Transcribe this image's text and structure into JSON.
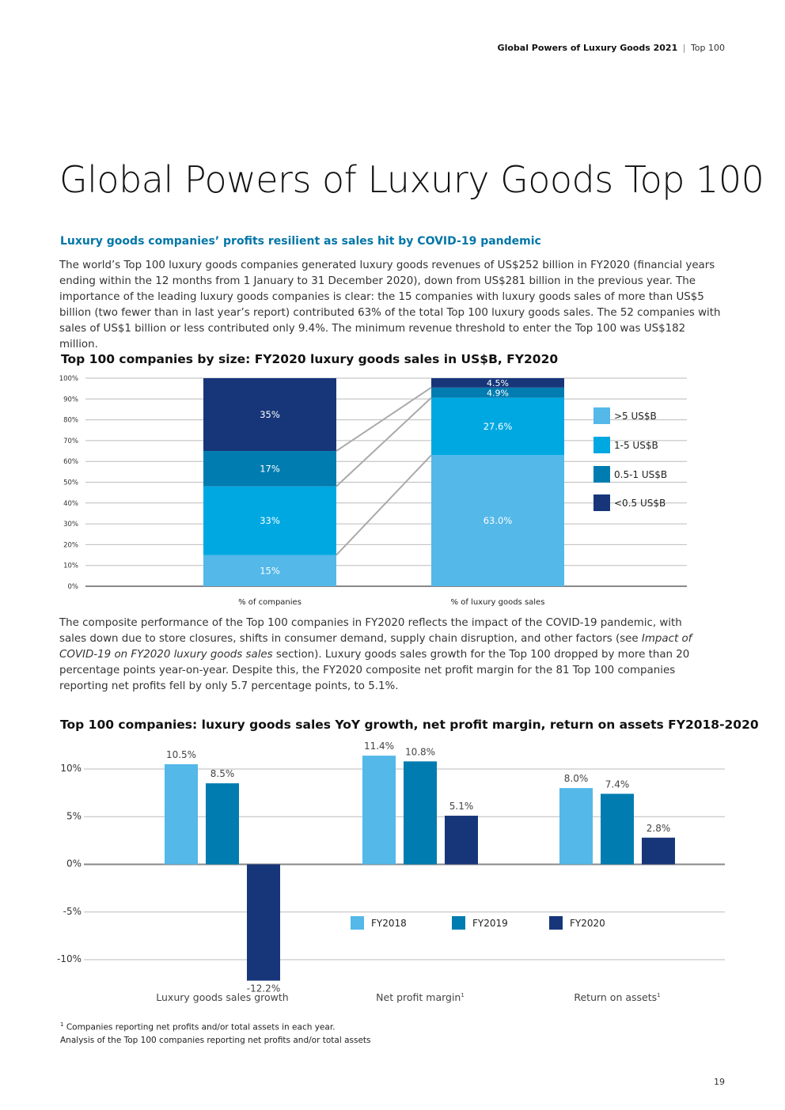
{
  "header": {
    "report_name": "Global Powers of Luxury Goods 2021",
    "separator": "|",
    "section": "Top 100"
  },
  "page_title": "Global Powers of Luxury Goods Top 100",
  "section_heading": "Luxury goods companies’ profits resilient as sales hit by COVID-19 pandemic",
  "paragraph1": "The world’s Top 100 luxury goods companies generated luxury goods revenues of US$252 billion in FY2020 (financial years ending within the 12 months from 1 January to 31 December 2020), down from US$281 billion in the previous year. The importance of the leading luxury goods companies is clear: the 15 companies with luxury goods sales of more than US$5 billion (two fewer than in last year’s report) contributed 63% of the total Top 100 luxury goods sales. The 52 companies with sales of US$1 billion or less contributed only 9.4%. The minimum revenue threshold to enter the Top 100 was US$182 million.",
  "paragraph2": {
    "part1": "The composite performance of the Top 100 companies in FY2020 reflects the impact of the COVID-19 pandemic, with sales down due to store closures, shifts in consumer demand, supply chain disruption, and other factors (see ",
    "italic": "Impact of COVID-19 on FY2020 luxury goods sales",
    "part2": " section). Luxury goods sales growth for the Top 100 dropped by more than 20 percentage points year-on-year. Despite this, the FY2020 composite net profit margin for the 81 Top 100 companies reporting net profits fell by only 5.7 percentage points, to 5.1%."
  },
  "chart_data": [
    {
      "type": "bar",
      "stacked": true,
      "title": "Top 100  companies by size: FY2020 luxury goods sales in US$B, FY2020",
      "categories": [
        "% of companies",
        "% of luxury goods sales"
      ],
      "yticks": [
        "0%",
        "10%",
        "20%",
        "30%",
        "40%",
        "50%",
        "60%",
        "70%",
        "80%",
        "90%",
        "100%"
      ],
      "ylim": [
        0,
        100
      ],
      "series": [
        {
          "name": ">5 US$B",
          "color": "#54b8e9",
          "values": [
            15,
            63.0
          ],
          "labels": [
            "15%",
            "63.0%"
          ]
        },
        {
          "name": "1-5 US$B",
          "color": "#00a8e1",
          "values": [
            33,
            27.6
          ],
          "labels": [
            "33%",
            "27.6%"
          ]
        },
        {
          "name": "0.5-1 US$B",
          "color": "#007cb0",
          "values": [
            17,
            4.9
          ],
          "labels": [
            "17%",
            "4.9%"
          ]
        },
        {
          "name": "<0.5 US$B",
          "color": "#17367a",
          "values": [
            35,
            4.5
          ],
          "labels": [
            "35%",
            "4.5%"
          ]
        }
      ],
      "legend": "right"
    },
    {
      "type": "bar",
      "title": "Top 100 companies: luxury goods sales YoY growth, net profit margin, return on assets FY2018-2020",
      "categories": [
        "Luxury goods sales growth",
        "Net profit margin",
        "Return on assets"
      ],
      "category_superscripts": [
        "",
        "1",
        "1"
      ],
      "yticks": [
        "-10%",
        "-5%",
        "0%",
        "5%",
        "10%"
      ],
      "ylim": [
        -12.5,
        12
      ],
      "series": [
        {
          "name": "FY2018",
          "color": "#54b8e9",
          "values": [
            10.5,
            11.4,
            8.0
          ],
          "labels": [
            "10.5%",
            "11.4%",
            "8.0%"
          ]
        },
        {
          "name": "FY2019",
          "color": "#007cb0",
          "values": [
            8.5,
            10.8,
            7.4
          ],
          "labels": [
            "8.5%",
            "10.8%",
            "7.4%"
          ]
        },
        {
          "name": "FY2020",
          "color": "#17367a",
          "values": [
            -12.2,
            5.1,
            2.8
          ],
          "labels": [
            "-12.2%",
            "5.1%",
            "2.8%"
          ]
        }
      ],
      "legend": "center"
    }
  ],
  "footnote": {
    "marker": "1",
    "line1": "Companies reporting net profits and/or total assets in each year.",
    "line2": "Analysis of the Top 100 companies reporting net profits and/or total assets"
  },
  "page_number": "19"
}
